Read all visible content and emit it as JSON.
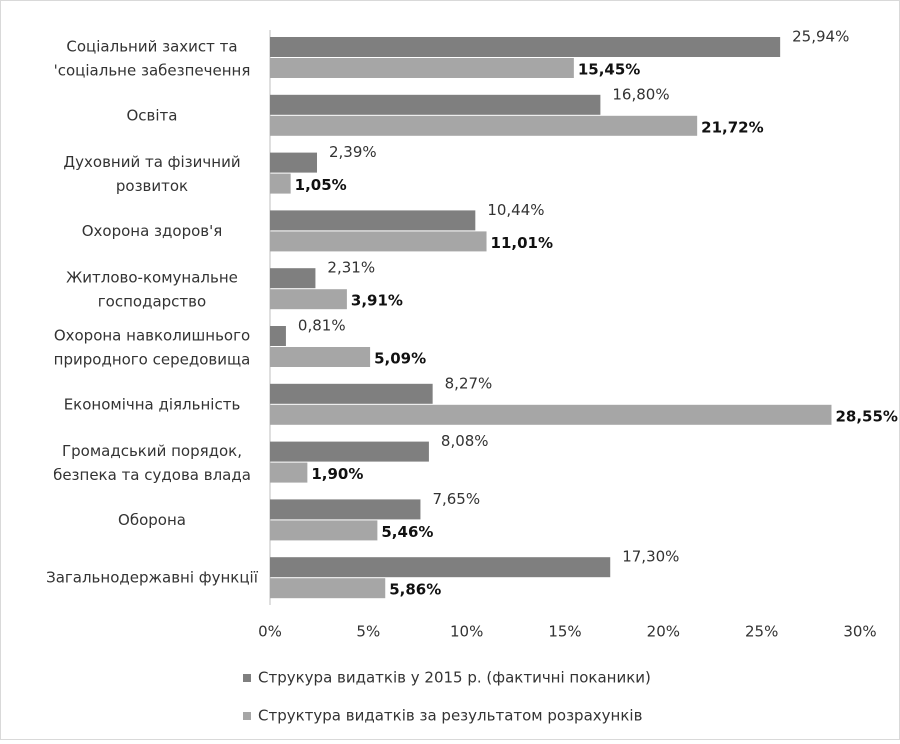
{
  "chart_data": {
    "type": "hbar",
    "categories": [
      [
        "Соціальний захист та",
        "'соціальне забезпечення"
      ],
      [
        "Освіта"
      ],
      [
        "Духовний та фізичний",
        "розвиток"
      ],
      [
        "Охорона здоров'я"
      ],
      [
        "Житлово-комунальне",
        "господарство"
      ],
      [
        "Охорона навколишнього",
        "природного середовища"
      ],
      [
        "Економічна діяльність"
      ],
      [
        "Громадський порядок,",
        "безпека та судова влада"
      ],
      [
        "Оборона"
      ],
      [
        "Загальнодержавні функції"
      ]
    ],
    "series": [
      {
        "name": "Струкура видатків у 2015 р. (фактичні поканики)",
        "color": "#7f7f7f",
        "values": [
          25.94,
          16.8,
          2.39,
          10.44,
          2.31,
          0.81,
          8.27,
          8.08,
          7.65,
          17.3
        ],
        "value_labels": [
          "25,94%",
          "16,80%",
          "2,39%",
          "10,44%",
          "2,31%",
          "0,81%",
          "8,27%",
          "8,08%",
          "7,65%",
          "17,30%"
        ]
      },
      {
        "name": "Структура видатків за результатом розрахунків",
        "color": "#a6a6a6",
        "values": [
          15.45,
          21.72,
          1.05,
          11.01,
          3.91,
          5.09,
          28.55,
          1.9,
          5.46,
          5.86
        ],
        "value_labels": [
          "15,45%",
          "21,72%",
          "1,05%",
          "11,01%",
          "3,91%",
          "5,09%",
          "28,55%",
          "1,90%",
          "5,46%",
          "5,86%"
        ]
      }
    ],
    "xlim": [
      0,
      30
    ],
    "xticks": [
      {
        "value": 0,
        "label": "0%"
      },
      {
        "value": 5,
        "label": "5%"
      },
      {
        "value": 10,
        "label": "10%"
      },
      {
        "value": 15,
        "label": "15%"
      },
      {
        "value": 20,
        "label": "20%"
      },
      {
        "value": 25,
        "label": "25%"
      },
      {
        "value": 30,
        "label": "30%"
      }
    ],
    "grid": false,
    "legend": "bottom"
  }
}
